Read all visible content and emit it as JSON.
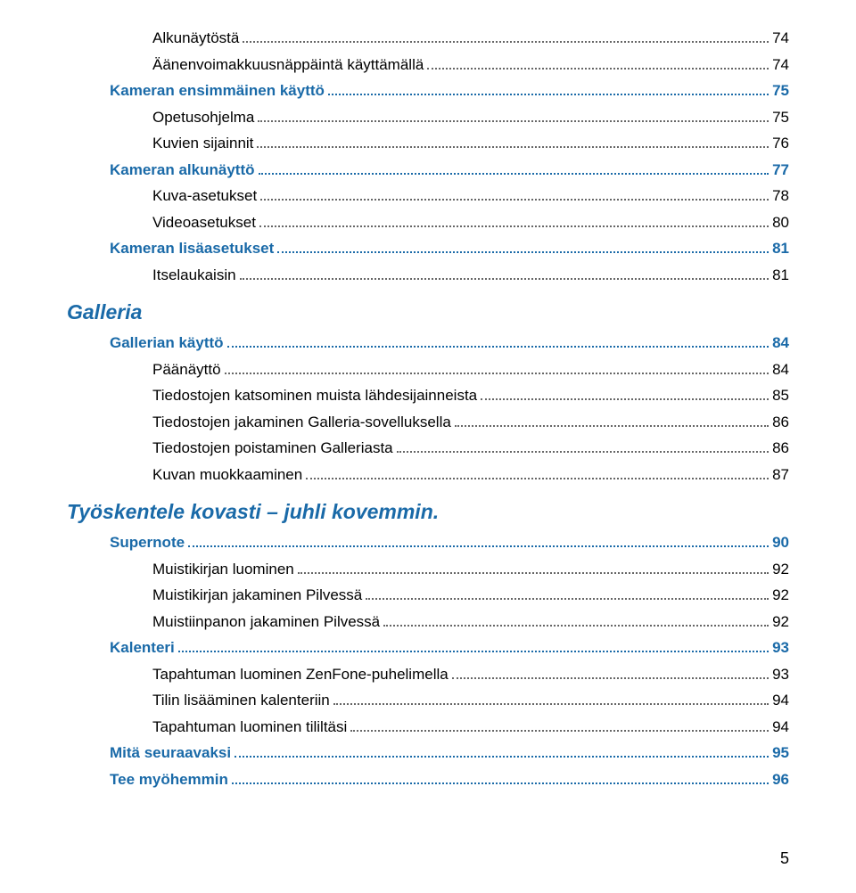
{
  "colors": {
    "heading": "#1a6aa8",
    "body": "#000000",
    "dots_black": "#666666",
    "dots_blue": "#1a6aa8",
    "background": "#ffffff"
  },
  "typography": {
    "heading_fontsize": 23,
    "body_fontsize": 17,
    "heading_italic": true,
    "heading_bold": true
  },
  "page_number": "5",
  "entries": [
    {
      "label": "Alkunäytöstä",
      "page": "74",
      "level": 1,
      "blue": false,
      "bold": false
    },
    {
      "label": "Äänenvoimakkuusnäppäintä käyttämällä",
      "page": "74",
      "level": 1,
      "blue": false,
      "bold": false
    },
    {
      "label": "Kameran ensimmäinen käyttö",
      "page": "75",
      "level": 0,
      "blue": true,
      "bold": true
    },
    {
      "label": "Opetusohjelma",
      "page": "75",
      "level": 1,
      "blue": false,
      "bold": false
    },
    {
      "label": "Kuvien sijainnit",
      "page": "76",
      "level": 1,
      "blue": false,
      "bold": false
    },
    {
      "label": "Kameran alkunäyttö",
      "page": "77",
      "level": 0,
      "blue": true,
      "bold": true
    },
    {
      "label": "Kuva-asetukset",
      "page": "78",
      "level": 1,
      "blue": false,
      "bold": false
    },
    {
      "label": "Videoasetukset",
      "page": "80",
      "level": 1,
      "blue": false,
      "bold": false
    },
    {
      "label": "Kameran lisäasetukset",
      "page": "81",
      "level": 0,
      "blue": true,
      "bold": true
    },
    {
      "label": "Itselaukaisin",
      "page": "81",
      "level": 1,
      "blue": false,
      "bold": false
    }
  ],
  "section_galleria": "Galleria",
  "entries_galleria": [
    {
      "label": "Gallerian käyttö",
      "page": "84",
      "level": 0,
      "blue": true,
      "bold": true
    },
    {
      "label": "Päänäyttö",
      "page": "84",
      "level": 1,
      "blue": false,
      "bold": false
    },
    {
      "label": "Tiedostojen katsominen muista lähdesijainneista",
      "page": "85",
      "level": 1,
      "blue": false,
      "bold": false
    },
    {
      "label": "Tiedostojen jakaminen Galleria-sovelluksella",
      "page": "86",
      "level": 1,
      "blue": false,
      "bold": false
    },
    {
      "label": "Tiedostojen poistaminen Galleriasta",
      "page": "86",
      "level": 1,
      "blue": false,
      "bold": false
    },
    {
      "label": "Kuvan muokkaaminen",
      "page": "87",
      "level": 1,
      "blue": false,
      "bold": false
    }
  ],
  "section_tyosk": "Työskentele kovasti – juhli kovemmin.",
  "entries_tyosk": [
    {
      "label": "Supernote",
      "page": "90",
      "level": 0,
      "blue": true,
      "bold": true
    },
    {
      "label": "Muistikirjan luominen",
      "page": "92",
      "level": 1,
      "blue": false,
      "bold": false
    },
    {
      "label": "Muistikirjan jakaminen Pilvessä",
      "page": "92",
      "level": 1,
      "blue": false,
      "bold": false
    },
    {
      "label": "Muistiinpanon jakaminen Pilvessä",
      "page": "92",
      "level": 1,
      "blue": false,
      "bold": false
    },
    {
      "label": "Kalenteri",
      "page": "93",
      "level": 0,
      "blue": true,
      "bold": true
    },
    {
      "label": "Tapahtuman luominen ZenFone-puhelimella",
      "page": "93",
      "level": 1,
      "blue": false,
      "bold": false
    },
    {
      "label": "Tilin lisääminen kalenteriin",
      "page": "94",
      "level": 1,
      "blue": false,
      "bold": false
    },
    {
      "label": "Tapahtuman luominen tililtäsi",
      "page": "94",
      "level": 1,
      "blue": false,
      "bold": false
    },
    {
      "label": "Mitä seuraavaksi",
      "page": "95",
      "level": 0,
      "blue": true,
      "bold": true
    },
    {
      "label": "Tee myöhemmin",
      "page": "96",
      "level": 0,
      "blue": true,
      "bold": true
    }
  ]
}
